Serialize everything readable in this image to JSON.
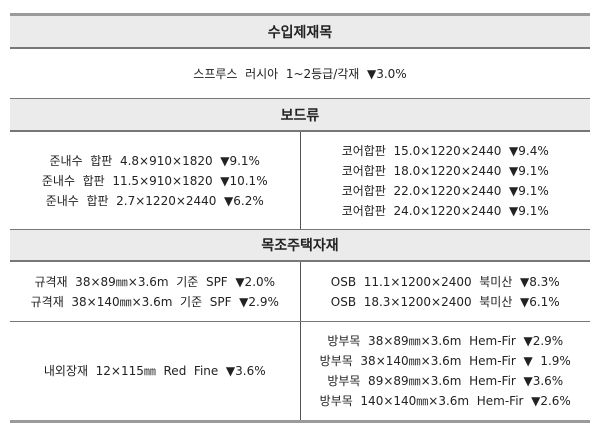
{
  "sections": [
    {
      "title": "수입제재목",
      "rows": [
        {
          "full": [
            "스프루스  러시아  1~2등급/각재  ▼3.0%"
          ]
        }
      ]
    },
    {
      "title": "보드류",
      "rows": [
        {
          "left": [
            "준내수  합판  4.8×910×1820  ▼9.1%",
            "준내수  합판  11.5×910×1820  ▼10.1%",
            "준내수  합판  2.7×1220×2440  ▼6.2%"
          ],
          "right": [
            "코어합판  15.0×1220×2440  ▼9.4%",
            "코어합판  18.0×1220×2440  ▼9.1%",
            "코어합판  22.0×1220×2440  ▼9.1%",
            "코어합판  24.0×1220×2440  ▼9.1%"
          ]
        }
      ]
    },
    {
      "title": "목조주택자재",
      "rows": [
        {
          "left": [
            "규격재  38×89㎜×3.6m  기준  SPF  ▼2.0%",
            "규격재  38×140㎜×3.6m  기준  SPF  ▼2.9%"
          ],
          "right": [
            "OSB  11.1×1200×2400  북미산  ▼8.3%",
            "OSB  18.3×1200×2400  북미산  ▼6.1%"
          ]
        },
        {
          "left": [
            "내외장재  12×115㎜  Red  Fine  ▼3.6%"
          ],
          "right": [
            "방부목  38×89㎜×3.6m  Hem-Fir  ▼2.9%",
            "방부목  38×140㎜×3.6m  Hem-Fir  ▼  1.9%",
            "방부목  89×89㎜×3.6m  Hem-Fir  ▼3.6%",
            "방부목  140×140㎜×3.6m  Hem-Fir  ▼2.6%"
          ]
        }
      ]
    }
  ]
}
